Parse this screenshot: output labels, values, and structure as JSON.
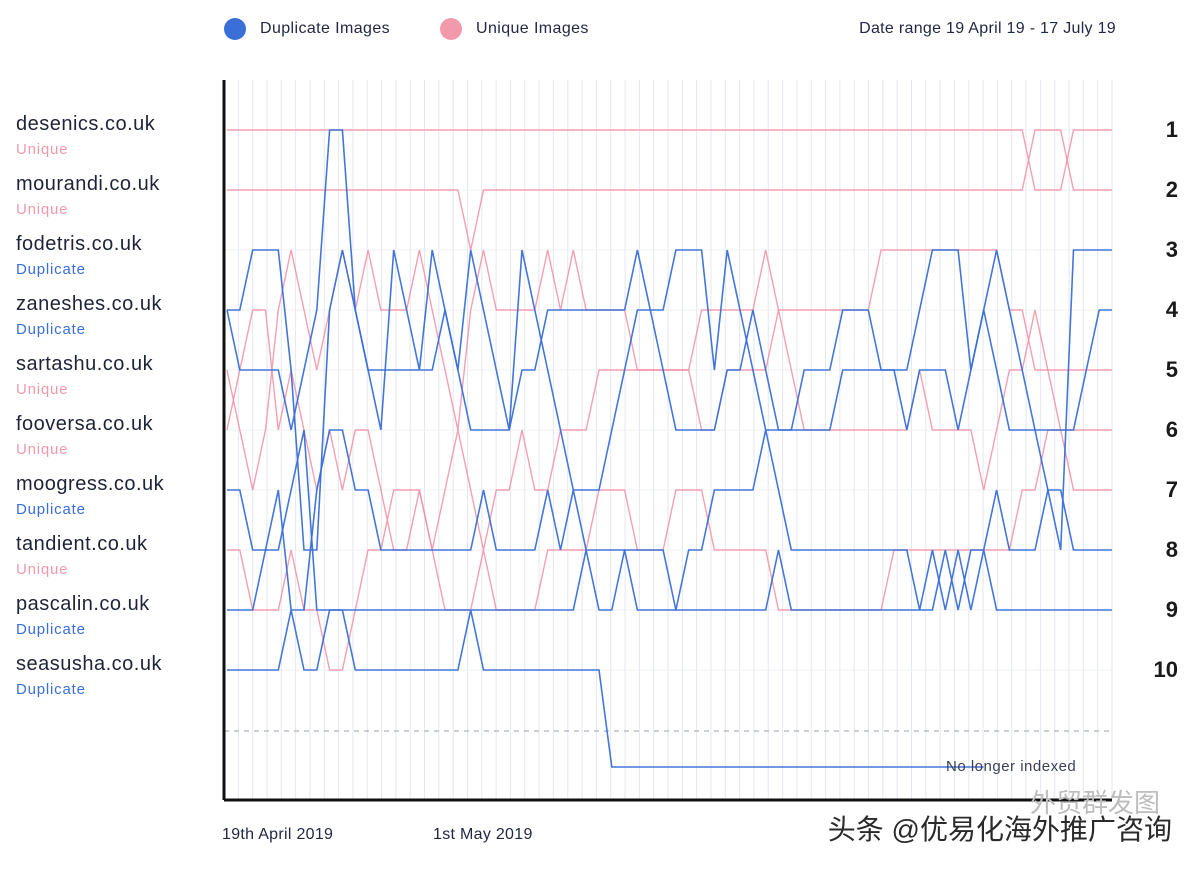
{
  "legend": {
    "duplicate_label": "Duplicate Images",
    "unique_label": "Unique Images",
    "duplicate_color": "#3a6fd8",
    "unique_color": "#f28ea4",
    "date_range": "Date range 19 April 19 - 17 July 19"
  },
  "chart_data": {
    "type": "line",
    "y_axis": "rank",
    "y_scale": "inverted",
    "y_ticks": [
      "1",
      "2",
      "3",
      "4",
      "5",
      "6",
      "7",
      "8",
      "9",
      "10"
    ],
    "x_tick_labels": [
      "19th April 2019",
      "1st May 2019"
    ],
    "grid": "vertical lines",
    "legend_position": "top",
    "dropped_label": "No longer indexed",
    "x_start_index": 0,
    "series": [
      {
        "name": "desenics.co.uk",
        "type": "Unique",
        "values": [
          1,
          1,
          1,
          1,
          1,
          1,
          1,
          1,
          1,
          1,
          1,
          1,
          1,
          1,
          1,
          1,
          1,
          1,
          1,
          1,
          1,
          1,
          1,
          1,
          1,
          1,
          1,
          1,
          1,
          1,
          1,
          1,
          1,
          1,
          1,
          1,
          1,
          1,
          1,
          1,
          1,
          1,
          1,
          1,
          1,
          1,
          1,
          1,
          1,
          1,
          1,
          1,
          1,
          1,
          1,
          1,
          1,
          1,
          1,
          1,
          1,
          1,
          1,
          2,
          2,
          2,
          1,
          1,
          1,
          1
        ]
      },
      {
        "name": "mourandi.co.uk",
        "type": "Unique",
        "values": [
          2,
          2,
          2,
          2,
          2,
          2,
          2,
          2,
          2,
          2,
          2,
          2,
          2,
          2,
          2,
          2,
          2,
          2,
          2,
          3,
          2,
          2,
          2,
          2,
          2,
          2,
          2,
          2,
          2,
          2,
          2,
          2,
          2,
          2,
          2,
          2,
          2,
          2,
          2,
          2,
          2,
          2,
          2,
          2,
          2,
          2,
          2,
          2,
          2,
          2,
          2,
          2,
          2,
          2,
          2,
          2,
          2,
          2,
          2,
          2,
          2,
          2,
          2,
          1,
          1,
          1,
          2,
          2,
          2,
          2
        ]
      },
      {
        "name": "fodetris.co.uk",
        "type": "Duplicate",
        "values": [
          4,
          4,
          3,
          3,
          3,
          5,
          8,
          8,
          4,
          3,
          4,
          5,
          6,
          3,
          4,
          5,
          3,
          4,
          5,
          3,
          4,
          5,
          6,
          3,
          4,
          5,
          6,
          7,
          7,
          7,
          6,
          5,
          4,
          4,
          4,
          3,
          3,
          3,
          5,
          3,
          4,
          5,
          6,
          6,
          6,
          5,
          5,
          5,
          4,
          4,
          4,
          5,
          5,
          5,
          4,
          3,
          3,
          3,
          5,
          4,
          3,
          4,
          5,
          6,
          7,
          8,
          3,
          3,
          3,
          3
        ]
      },
      {
        "name": "zaneshes.co.uk",
        "type": "Duplicate",
        "values": [
          4,
          5,
          5,
          5,
          5,
          6,
          5,
          4,
          1,
          1,
          4,
          5,
          5,
          5,
          5,
          5,
          5,
          4,
          5,
          6,
          6,
          6,
          6,
          5,
          5,
          4,
          4,
          4,
          4,
          4,
          4,
          4,
          3,
          4,
          5,
          6,
          6,
          6,
          6,
          5,
          5,
          4,
          5,
          6,
          6,
          6,
          6,
          6,
          5,
          5,
          5,
          5,
          5,
          6,
          5,
          5,
          5,
          6,
          5,
          4,
          5,
          6,
          6,
          6,
          6,
          6,
          6,
          5,
          4,
          4
        ]
      },
      {
        "name": "sartashu.co.uk",
        "type": "Unique",
        "values": [
          5,
          6,
          7,
          6,
          4,
          3,
          4,
          5,
          4,
          3,
          4,
          3,
          4,
          4,
          4,
          3,
          4,
          5,
          6,
          4,
          3,
          4,
          4,
          4,
          4,
          3,
          4,
          3,
          4,
          4,
          4,
          4,
          5,
          5,
          5,
          5,
          5,
          4,
          4,
          4,
          4,
          4,
          3,
          4,
          4,
          4,
          4,
          4,
          4,
          4,
          4,
          3,
          3,
          3,
          3,
          3,
          3,
          3,
          3,
          3,
          3,
          4,
          4,
          5,
          5,
          5,
          5,
          5,
          5,
          5
        ]
      },
      {
        "name": "fooversa.co.uk",
        "type": "Unique",
        "values": [
          6,
          5,
          4,
          4,
          6,
          5,
          6,
          7,
          6,
          7,
          6,
          6,
          7,
          8,
          8,
          7,
          8,
          7,
          6,
          7,
          8,
          7,
          7,
          6,
          7,
          7,
          6,
          6,
          6,
          5,
          5,
          5,
          5,
          5,
          5,
          5,
          5,
          6,
          6,
          5,
          5,
          5,
          5,
          4,
          5,
          6,
          6,
          6,
          6,
          6,
          6,
          6,
          6,
          6,
          5,
          6,
          6,
          6,
          6,
          7,
          6,
          5,
          5,
          4,
          5,
          6,
          6,
          6,
          6,
          6
        ]
      },
      {
        "name": "moogress.co.uk",
        "type": "Duplicate",
        "values": [
          7,
          7,
          8,
          8,
          7,
          9,
          9,
          7,
          6,
          6,
          7,
          7,
          8,
          8,
          8,
          8,
          8,
          8,
          8,
          8,
          7,
          8,
          8,
          8,
          8,
          7,
          8,
          7,
          8,
          8,
          8,
          8,
          9,
          9,
          9,
          9,
          8,
          8,
          7,
          7,
          7,
          7,
          6,
          7,
          8,
          8,
          8,
          8,
          8,
          8,
          8,
          8,
          8,
          8,
          9,
          8,
          9,
          8,
          9,
          8,
          7,
          8,
          8,
          8,
          7,
          7,
          8,
          8,
          8,
          8
        ]
      },
      {
        "name": "tandient.co.uk",
        "type": "Unique",
        "values": [
          8,
          8,
          9,
          9,
          9,
          8,
          9,
          9,
          10,
          10,
          9,
          8,
          8,
          7,
          7,
          7,
          8,
          9,
          9,
          9,
          8,
          9,
          9,
          9,
          9,
          8,
          8,
          8,
          8,
          7,
          7,
          7,
          8,
          8,
          8,
          7,
          7,
          7,
          8,
          8,
          8,
          8,
          8,
          9,
          9,
          9,
          9,
          9,
          9,
          9,
          9,
          9,
          8,
          8,
          8,
          8,
          8,
          8,
          8,
          8,
          8,
          8,
          7,
          7,
          6,
          6,
          7,
          7,
          7,
          7
        ]
      },
      {
        "name": "pascalin.co.uk",
        "type": "Duplicate",
        "values": [
          9,
          9,
          9,
          8,
          8,
          7,
          6,
          9,
          9,
          9,
          9,
          9,
          9,
          9,
          9,
          9,
          9,
          9,
          9,
          9,
          9,
          9,
          9,
          9,
          9,
          9,
          9,
          9,
          8,
          9,
          9,
          8,
          8,
          8,
          8,
          9,
          9,
          9,
          9,
          9,
          9,
          9,
          9,
          8,
          9,
          9,
          9,
          9,
          9,
          9,
          9,
          9,
          9,
          9,
          9,
          9,
          8,
          9,
          8,
          8,
          9,
          9,
          9,
          9,
          9,
          9,
          9,
          9,
          9,
          9
        ]
      },
      {
        "name": "seasusha.co.uk",
        "type": "Duplicate",
        "values": [
          10,
          10,
          10,
          10,
          10,
          9,
          10,
          10,
          9,
          9,
          10,
          10,
          10,
          10,
          10,
          10,
          10,
          10,
          10,
          9,
          10,
          10,
          10,
          10,
          10,
          10,
          10,
          10,
          10,
          10,
          11,
          11,
          11,
          11,
          11,
          11,
          11,
          11,
          11,
          11,
          11,
          11,
          11,
          11,
          11,
          11,
          11,
          11,
          11,
          11,
          11,
          11,
          11,
          11,
          11,
          11,
          11,
          11,
          11,
          11,
          null,
          null,
          null,
          null,
          null,
          null,
          null,
          null,
          null,
          null
        ]
      }
    ]
  },
  "watermark": {
    "main": "头条 @优易化海外推广咨询",
    "ghost": "外贸群发图"
  }
}
